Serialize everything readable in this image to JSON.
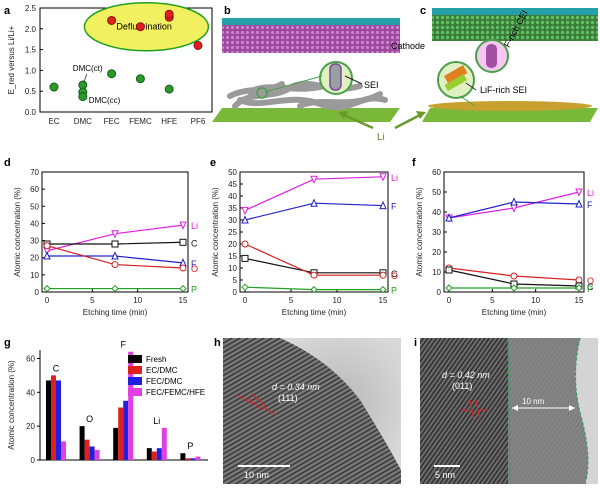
{
  "panel_labels": [
    "a",
    "b",
    "c",
    "d",
    "e",
    "f",
    "g",
    "h",
    "i"
  ],
  "colors": {
    "C": "#111111",
    "O": "#d62020",
    "F": "#2020c8",
    "Li": "#e020e0",
    "P": "#20a020"
  },
  "panel_a": {
    "ylabel": "E_red versus Li/Li+",
    "annotation_box": "Defluorination",
    "labels_dmc": [
      "DMC(ct)",
      "DMC(cc)"
    ]
  },
  "panel_b": {
    "sei_label": "SEI"
  },
  "panel_c": {
    "cathode_label": "Cathode",
    "cei_label": "F-rich CEI",
    "sei_label": "LiF-rich SEI",
    "li_label": "Li"
  },
  "panel_h": {
    "d_value": "d = 0.34 nm",
    "plane": "(111)",
    "scale": "10 nm"
  },
  "panel_i": {
    "d_value": "d = 0.42 nm",
    "plane": "(011)",
    "width": "10 nm",
    "scale": "5 nm"
  },
  "chart_data": [
    {
      "id": "a",
      "type": "scatter",
      "categories": [
        "EC",
        "DMC",
        "FEC",
        "FEMC",
        "HFE",
        "PF6"
      ],
      "ylim": [
        0,
        2.5
      ],
      "yticks": [
        0,
        0.5,
        1.0,
        1.5,
        2.0,
        2.5
      ],
      "ylabel": "E_red versus Li/Li+",
      "green": [
        {
          "x": "EC",
          "y": 0.6
        },
        {
          "x": "DMC",
          "y": 0.65
        },
        {
          "x": "DMC",
          "y": 0.48
        },
        {
          "x": "DMC",
          "y": 0.37
        },
        {
          "x": "FEC",
          "y": 0.92
        },
        {
          "x": "FEMC",
          "y": 0.8
        },
        {
          "x": "HFE",
          "y": 0.55
        }
      ],
      "red": [
        {
          "x": "FEC",
          "y": 2.2
        },
        {
          "x": "FEMC",
          "y": 2.05
        },
        {
          "x": "HFE",
          "y": 2.28
        },
        {
          "x": "HFE",
          "y": 2.35
        },
        {
          "x": "PF6",
          "y": 1.6
        }
      ]
    },
    {
      "id": "d",
      "type": "line",
      "xlabel": "Etching time (min)",
      "ylabel": "Atomic concentration (%)",
      "xlim": [
        0,
        15
      ],
      "ylim": [
        0,
        70
      ],
      "xticks": [
        0,
        5,
        10,
        15
      ],
      "yticks": [
        0,
        10,
        20,
        30,
        40,
        50,
        60,
        70
      ],
      "x": [
        0,
        7.5,
        15
      ],
      "series": [
        {
          "name": "Li",
          "values": [
            24,
            34,
            39
          ],
          "color": "Li",
          "marker": "down"
        },
        {
          "name": "C",
          "values": [
            28,
            28,
            29
          ],
          "color": "C",
          "marker": "square"
        },
        {
          "name": "F",
          "values": [
            21,
            21,
            17
          ],
          "color": "F",
          "marker": "up"
        },
        {
          "name": "O",
          "values": [
            27,
            16,
            14
          ],
          "color": "O",
          "marker": "circle"
        },
        {
          "name": "P",
          "values": [
            2,
            2,
            2
          ],
          "color": "P",
          "marker": "diamond"
        }
      ]
    },
    {
      "id": "e",
      "type": "line",
      "xlabel": "Etching time (min)",
      "ylabel": "Atomic concentration (%)",
      "xlim": [
        0,
        15
      ],
      "ylim": [
        0,
        50
      ],
      "xticks": [
        0,
        5,
        10,
        15
      ],
      "yticks": [
        0,
        5,
        10,
        15,
        20,
        25,
        30,
        35,
        40,
        45,
        50
      ],
      "x": [
        0,
        7.5,
        15
      ],
      "series": [
        {
          "name": "Li",
          "values": [
            34,
            47,
            48
          ],
          "color": "Li",
          "marker": "down"
        },
        {
          "name": "F",
          "values": [
            30,
            37,
            36
          ],
          "color": "F",
          "marker": "up"
        },
        {
          "name": "C",
          "values": [
            14,
            8,
            8
          ],
          "color": "C",
          "marker": "square"
        },
        {
          "name": "O",
          "values": [
            20,
            7,
            7
          ],
          "color": "O",
          "marker": "circle"
        },
        {
          "name": "P",
          "values": [
            2,
            1,
            1
          ],
          "color": "P",
          "marker": "diamond"
        }
      ]
    },
    {
      "id": "f",
      "type": "line",
      "xlabel": "Etching time (min)",
      "ylabel": "Atomic concentration (%)",
      "xlim": [
        0,
        15
      ],
      "ylim": [
        0,
        60
      ],
      "xticks": [
        0,
        5,
        10,
        15
      ],
      "yticks": [
        0,
        10,
        20,
        30,
        40,
        50,
        60
      ],
      "x": [
        0,
        7.5,
        15
      ],
      "series": [
        {
          "name": "Li",
          "values": [
            37,
            42,
            50
          ],
          "color": "Li",
          "marker": "down"
        },
        {
          "name": "F",
          "values": [
            37,
            45,
            44
          ],
          "color": "F",
          "marker": "up"
        },
        {
          "name": "O",
          "values": [
            12,
            8,
            6
          ],
          "color": "O",
          "marker": "circle"
        },
        {
          "name": "C",
          "values": [
            11,
            4,
            3
          ],
          "color": "C",
          "marker": "square"
        },
        {
          "name": "P",
          "values": [
            2,
            2,
            2
          ],
          "color": "P",
          "marker": "diamond"
        }
      ]
    },
    {
      "id": "g",
      "type": "bar",
      "ylabel": "Atomic concentration (%)",
      "ylim": [
        0,
        65
      ],
      "yticks": [
        0,
        20,
        40,
        60
      ],
      "categories": [
        "C",
        "O",
        "F",
        "Li",
        "P"
      ],
      "series": [
        {
          "name": "Fresh",
          "color": "#000000",
          "values": [
            47,
            20,
            19,
            7,
            4
          ]
        },
        {
          "name": "EC/DMC",
          "color": "#e02020",
          "values": [
            50,
            12,
            31,
            5,
            1
          ]
        },
        {
          "name": "FEC/DMC",
          "color": "#2020e0",
          "values": [
            47,
            8,
            35,
            7,
            1
          ]
        },
        {
          "name": "FEC/FEMC/HFE",
          "color": "#e040e0",
          "values": [
            11,
            6,
            64,
            19,
            2
          ]
        }
      ]
    }
  ]
}
